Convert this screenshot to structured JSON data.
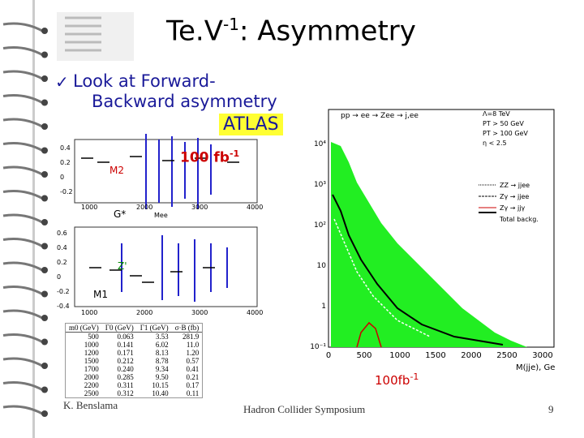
{
  "title": {
    "main": "Te.V",
    "sup": "-1",
    "rest": ": Asymmetry"
  },
  "bullet": {
    "line1": "Look at Forward-",
    "line2": "Backward asymmetry"
  },
  "atlas": "ATLAS",
  "lumi_top": {
    "main": "100 fb",
    "sup": "-1"
  },
  "lumi_bottom": {
    "main": "100fb",
    "sup": "-1"
  },
  "left_plots": {
    "upper": {
      "label": "M2",
      "x_ticks": [
        "1000",
        "2000",
        "3000",
        "4000"
      ],
      "x_label": "Mee",
      "y_ticks": [
        "0.4",
        "0.2",
        "0",
        "-0.2"
      ],
      "model": "G*"
    },
    "lower": {
      "label": "Z'",
      "model_label": "M1",
      "x_ticks": [
        "1000",
        "2000",
        "3000",
        "4000"
      ],
      "y_ticks": [
        "0.6",
        "0.4",
        "0.2",
        "0",
        "-0.2",
        "-0.4"
      ]
    }
  },
  "table": {
    "header": [
      "m0 (GeV)",
      "Γ0 (GeV)",
      "Γ1 (GeV)",
      "σ·B (fb)"
    ],
    "rows": [
      [
        "500",
        "0.063",
        "3.53",
        "281.9"
      ],
      [
        "1000",
        "0.141",
        "6.02",
        "11.0"
      ],
      [
        "1200",
        "0.171",
        "8.13",
        "1.20"
      ],
      [
        "1500",
        "0.212",
        "8.78",
        "0.57"
      ],
      [
        "1700",
        "0.240",
        "9.34",
        "0.41"
      ],
      [
        "2000",
        "0.285",
        "9.50",
        "0.21"
      ],
      [
        "2200",
        "0.311",
        "10.15",
        "0.17"
      ],
      [
        "2500",
        "0.312",
        "10.40",
        "0.11"
      ]
    ]
  },
  "right_plot": {
    "process": "pp → ee → Zee → j,ee",
    "cuts": [
      "Λ=8 TeV",
      "PT > 50 GeV",
      "PT > 100 GeV",
      "η < 2.5"
    ],
    "legend": [
      "ZZ → jjee",
      "Zγ → jjee",
      "Zγ → jjγ",
      "Total backg."
    ],
    "x_ticks": [
      "0",
      "500",
      "1000",
      "1500",
      "2000",
      "2500",
      "3000"
    ],
    "y_ticks": [
      "10⁴",
      "10³",
      "10²",
      "10",
      "1",
      "10⁻¹"
    ],
    "x_label": "M(jje), Ge"
  },
  "footer": {
    "author": "K. Benslama",
    "event": "Hadron Collider Symposium",
    "page": "9"
  }
}
